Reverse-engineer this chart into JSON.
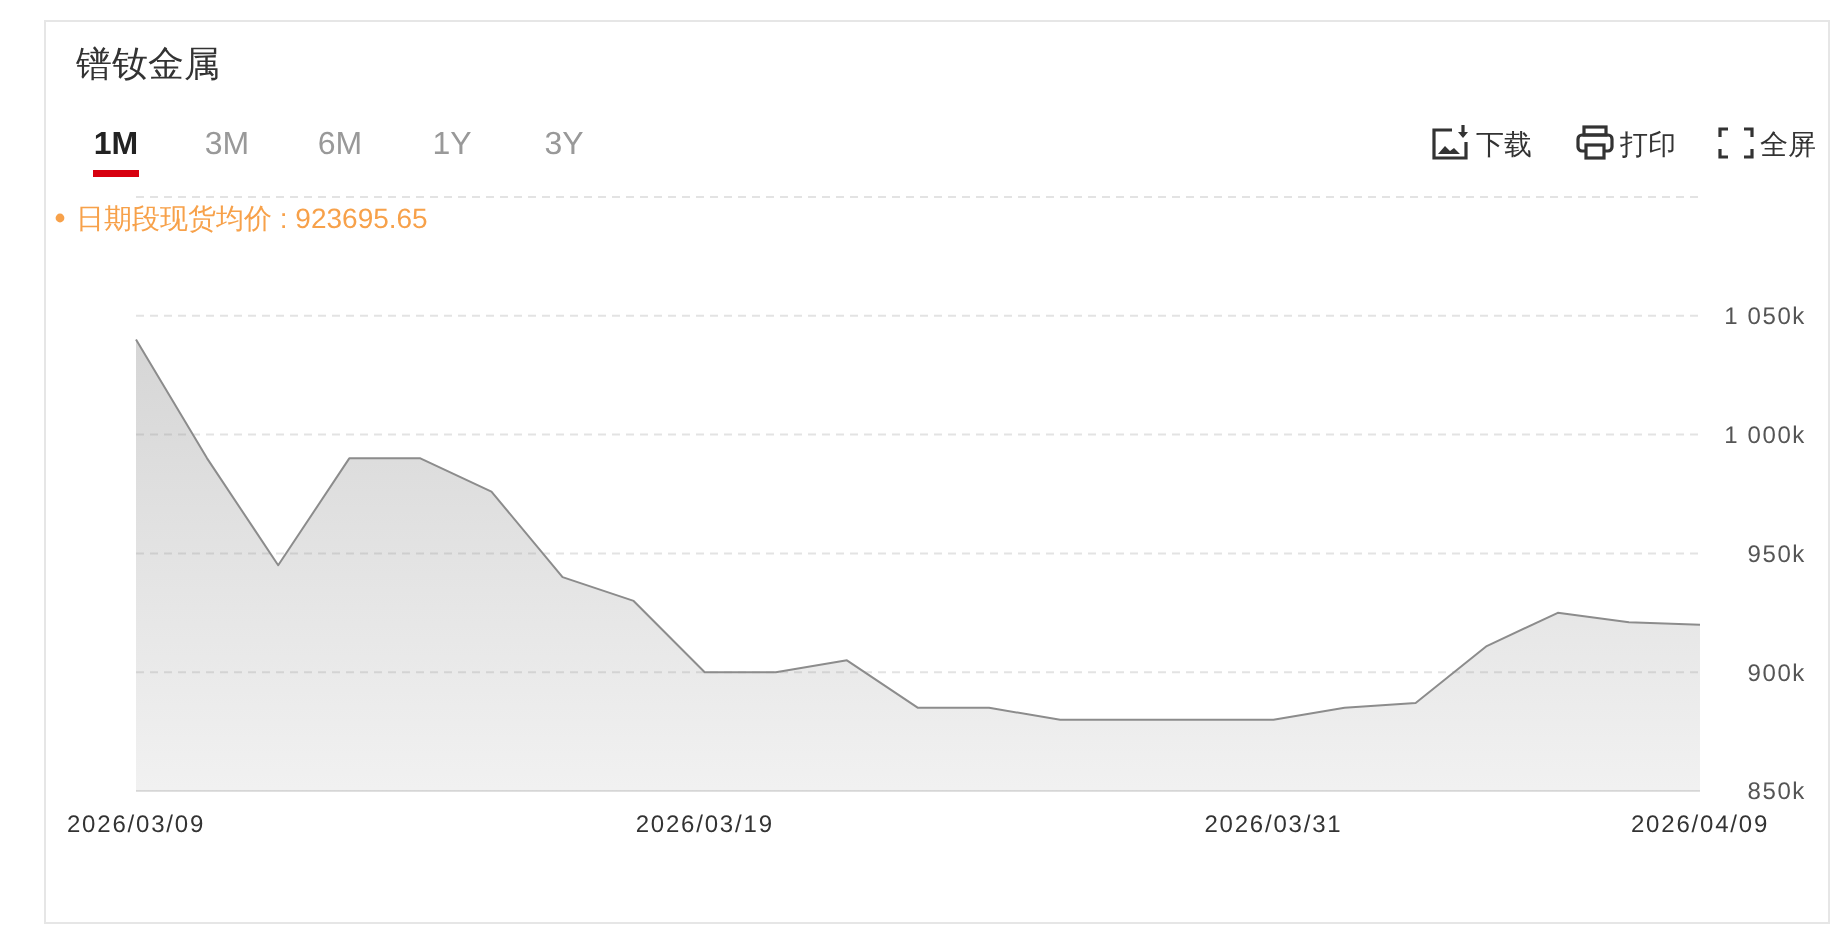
{
  "chart_data": {
    "type": "area",
    "title": "镨钕金属",
    "categories": [
      "2026/03/09",
      null,
      null,
      null,
      null,
      null,
      null,
      null,
      "2026/03/19",
      null,
      null,
      null,
      null,
      null,
      null,
      null,
      "2026/03/31",
      null,
      null,
      null,
      null,
      null,
      "2026/04/09"
    ],
    "series": [
      {
        "color": "#8c8c8c",
        "values": [
          1040000,
          990000,
          945000,
          990000,
          990000,
          976000,
          940000,
          930000,
          900000,
          900000,
          905000,
          885000,
          885000,
          880000,
          880000,
          880000,
          880000,
          885000,
          887000,
          911000,
          925000,
          921000,
          920000
        ]
      }
    ],
    "ylim": [
      850000,
      1100000
    ],
    "yticks": [
      {
        "value": 850000,
        "label": "850k"
      },
      {
        "value": 900000,
        "label": "900k"
      },
      {
        "value": 950000,
        "label": "950k"
      },
      {
        "value": 1000000,
        "label": "1 000k"
      },
      {
        "value": 1050000,
        "label": "1 050k"
      },
      {
        "value": 1100000,
        "label": null
      }
    ],
    "grid": "y",
    "annotations": [
      "1M",
      "3M",
      "6M",
      "1Y",
      "3Y",
      "下载",
      "打印",
      "全屏",
      "日期段现货均价 : 923695.65"
    ]
  }
}
